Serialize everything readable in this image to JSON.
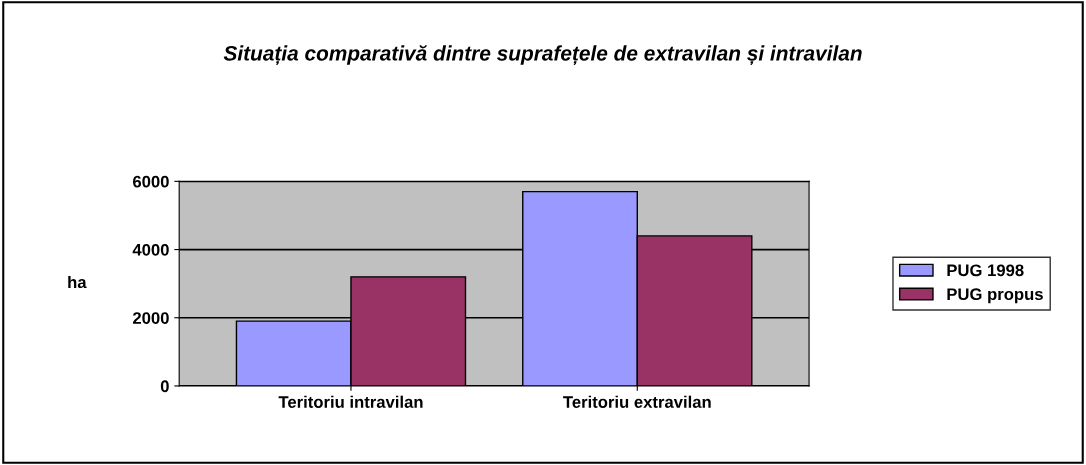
{
  "chart_data": {
    "type": "bar",
    "title": "Situația comparativă dintre suprafețele de extravilan și intravilan",
    "ylabel": "ha",
    "categories": [
      "Teritoriu intravilan",
      "Teritoriu extravilan"
    ],
    "series": [
      {
        "name": "PUG 1998",
        "color": "#9999ff",
        "values": [
          1900,
          5700
        ]
      },
      {
        "name": "PUG propus",
        "color": "#993366",
        "values": [
          3200,
          4400
        ]
      }
    ],
    "ylim": [
      0,
      6000
    ],
    "yticks": [
      0,
      2000,
      4000,
      6000
    ],
    "grid": "y",
    "legend": "right"
  }
}
